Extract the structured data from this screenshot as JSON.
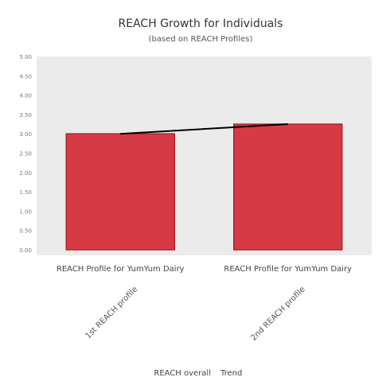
{
  "chart_data": {
    "type": "bar",
    "title": "REACH Growth for Individuals",
    "subtitle": "(based on REACH Profiles)",
    "categories": [
      "REACH Profile for YumYum Dairy",
      "REACH Profile for YumYum Dairy"
    ],
    "sublabels": [
      "1st REACH profile",
      "2nd REACH profile"
    ],
    "series": [
      {
        "name": "REACH overall",
        "type": "bar",
        "values": [
          3.0,
          3.25
        ],
        "color": "#d63b45"
      },
      {
        "name": "Trend",
        "type": "line",
        "values": [
          3.0,
          3.25
        ],
        "color": "#000000"
      }
    ],
    "ylim": [
      0,
      5
    ],
    "yticks": [
      "0.00",
      "0.50",
      "1.00",
      "1.50",
      "2.00",
      "2.50",
      "3.00",
      "3.50",
      "4.00",
      "4.50",
      "5.00"
    ],
    "grid": false,
    "plot_background": "#ebebeb",
    "legend_position": "bottom"
  }
}
